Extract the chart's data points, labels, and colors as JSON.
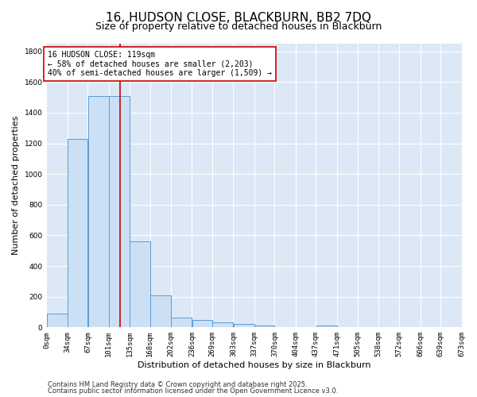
{
  "title_line1": "16, HUDSON CLOSE, BLACKBURN, BB2 7DQ",
  "title_line2": "Size of property relative to detached houses in Blackburn",
  "xlabel": "Distribution of detached houses by size in Blackburn",
  "ylabel": "Number of detached properties",
  "bar_edges": [
    0,
    34,
    67,
    101,
    135,
    168,
    202,
    236,
    269,
    303,
    337,
    370,
    404,
    437,
    471,
    505,
    538,
    572,
    606,
    639,
    673
  ],
  "bar_labels": [
    "0sqm",
    "34sqm",
    "67sqm",
    "101sqm",
    "135sqm",
    "168sqm",
    "202sqm",
    "236sqm",
    "269sqm",
    "303sqm",
    "337sqm",
    "370sqm",
    "404sqm",
    "437sqm",
    "471sqm",
    "505sqm",
    "538sqm",
    "572sqm",
    "606sqm",
    "639sqm",
    "673sqm"
  ],
  "bar_heights": [
    90,
    1230,
    1510,
    1510,
    560,
    210,
    65,
    48,
    35,
    25,
    10,
    0,
    0,
    10,
    0,
    0,
    0,
    0,
    0,
    0
  ],
  "bar_color": "#cce0f5",
  "bar_edge_color": "#5b9bd5",
  "vline_x": 119,
  "vline_color": "#cc0000",
  "annotation_text": "16 HUDSON CLOSE: 119sqm\n← 58% of detached houses are smaller (2,203)\n40% of semi-detached houses are larger (1,509) →",
  "annotation_box_color": "#ffffff",
  "annotation_box_edgecolor": "#cc0000",
  "ylim": [
    0,
    1850
  ],
  "yticks": [
    0,
    200,
    400,
    600,
    800,
    1000,
    1200,
    1400,
    1600,
    1800
  ],
  "background_color": "#dce8f5",
  "grid_color": "#ffffff",
  "fig_background": "#ffffff",
  "footer_line1": "Contains HM Land Registry data © Crown copyright and database right 2025.",
  "footer_line2": "Contains public sector information licensed under the Open Government Licence v3.0.",
  "title_fontsize": 11,
  "subtitle_fontsize": 9,
  "axis_label_fontsize": 8,
  "tick_fontsize": 6.5,
  "annotation_fontsize": 7,
  "footer_fontsize": 6
}
